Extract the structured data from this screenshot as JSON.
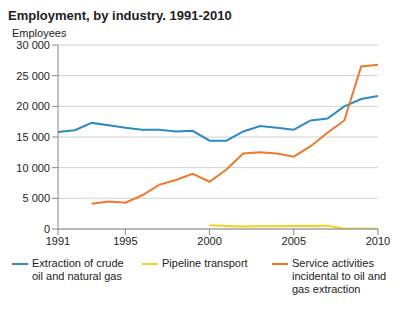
{
  "chart_data": {
    "type": "line",
    "title": "Employment, by industry. 1991-2010",
    "y_label": "Employees",
    "x": [
      1991,
      1992,
      1993,
      1994,
      1995,
      1996,
      1997,
      1998,
      1999,
      2000,
      2001,
      2002,
      2003,
      2004,
      2005,
      2006,
      2007,
      2008,
      2009,
      2010
    ],
    "series": [
      {
        "name": "Extraction of crude oil and natural gas",
        "color": "#2f8ac4",
        "values": [
          15800,
          16100,
          17300,
          16900,
          16500,
          16200,
          16200,
          15900,
          16000,
          14400,
          14400,
          15900,
          16800,
          16500,
          16200,
          17700,
          18000,
          20000,
          21200,
          21700
        ]
      },
      {
        "name": "Pipeline transport",
        "color": "#f2d31c",
        "values": [
          null,
          null,
          null,
          null,
          null,
          null,
          null,
          null,
          null,
          600,
          500,
          400,
          450,
          450,
          500,
          500,
          550,
          50,
          50,
          50
        ]
      },
      {
        "name": "Service activities incidental to oil and gas extraction",
        "color": "#ec7a2c",
        "values": [
          null,
          null,
          4100,
          4500,
          4300,
          5500,
          7200,
          8000,
          9000,
          7700,
          9700,
          12300,
          12500,
          12300,
          11800,
          13500,
          15700,
          17700,
          26500,
          26800
        ]
      }
    ],
    "xlim": [
      1991,
      2010
    ],
    "xticks": [
      1991,
      1995,
      2000,
      2005,
      2010
    ],
    "ylim": [
      0,
      30000
    ],
    "yticks": [
      0,
      {
        "value": 5000,
        "label": "5 000"
      },
      {
        "value": 10000,
        "label": "10 000"
      },
      {
        "value": 15000,
        "label": "15 000"
      },
      {
        "value": 20000,
        "label": "20 000"
      },
      {
        "value": 25000,
        "label": "25 000"
      },
      {
        "value": 30000,
        "label": "30 000"
      }
    ],
    "grid": true,
    "legend": "bottom"
  }
}
